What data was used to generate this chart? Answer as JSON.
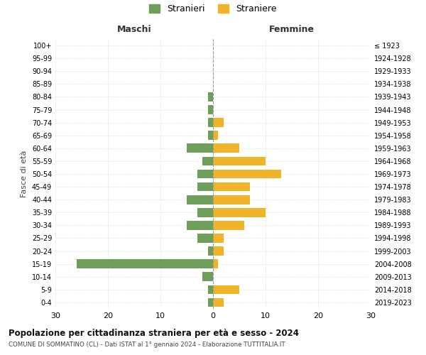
{
  "age_groups": [
    "100+",
    "95-99",
    "90-94",
    "85-89",
    "80-84",
    "75-79",
    "70-74",
    "65-69",
    "60-64",
    "55-59",
    "50-54",
    "45-49",
    "40-44",
    "35-39",
    "30-34",
    "25-29",
    "20-24",
    "15-19",
    "10-14",
    "5-9",
    "0-4"
  ],
  "birth_years": [
    "≤ 1923",
    "1924-1928",
    "1929-1933",
    "1934-1938",
    "1939-1943",
    "1944-1948",
    "1949-1953",
    "1954-1958",
    "1959-1963",
    "1964-1968",
    "1969-1973",
    "1974-1978",
    "1979-1983",
    "1984-1988",
    "1989-1993",
    "1994-1998",
    "1999-2003",
    "2004-2008",
    "2009-2013",
    "2014-2018",
    "2019-2023"
  ],
  "maschi": [
    0,
    0,
    0,
    0,
    1,
    1,
    1,
    1,
    5,
    2,
    3,
    3,
    5,
    3,
    5,
    3,
    1,
    26,
    2,
    1,
    1
  ],
  "femmine": [
    0,
    0,
    0,
    0,
    0,
    0,
    2,
    1,
    5,
    10,
    13,
    7,
    7,
    10,
    6,
    2,
    2,
    1,
    0,
    5,
    2
  ],
  "male_color": "#6d9e5a",
  "female_color": "#f0b429",
  "background_color": "#ffffff",
  "grid_color": "#cccccc",
  "title": "Popolazione per cittadinanza straniera per età e sesso - 2024",
  "subtitle": "COMUNE DI SOMMATINO (CL) - Dati ISTAT al 1° gennaio 2024 - Elaborazione TUTTITALIA.IT",
  "ylabel_left": "Fasce di età",
  "xlabel_left": "Maschi",
  "xlabel_right": "Femmine",
  "legend_male": "Stranieri",
  "legend_female": "Straniere"
}
